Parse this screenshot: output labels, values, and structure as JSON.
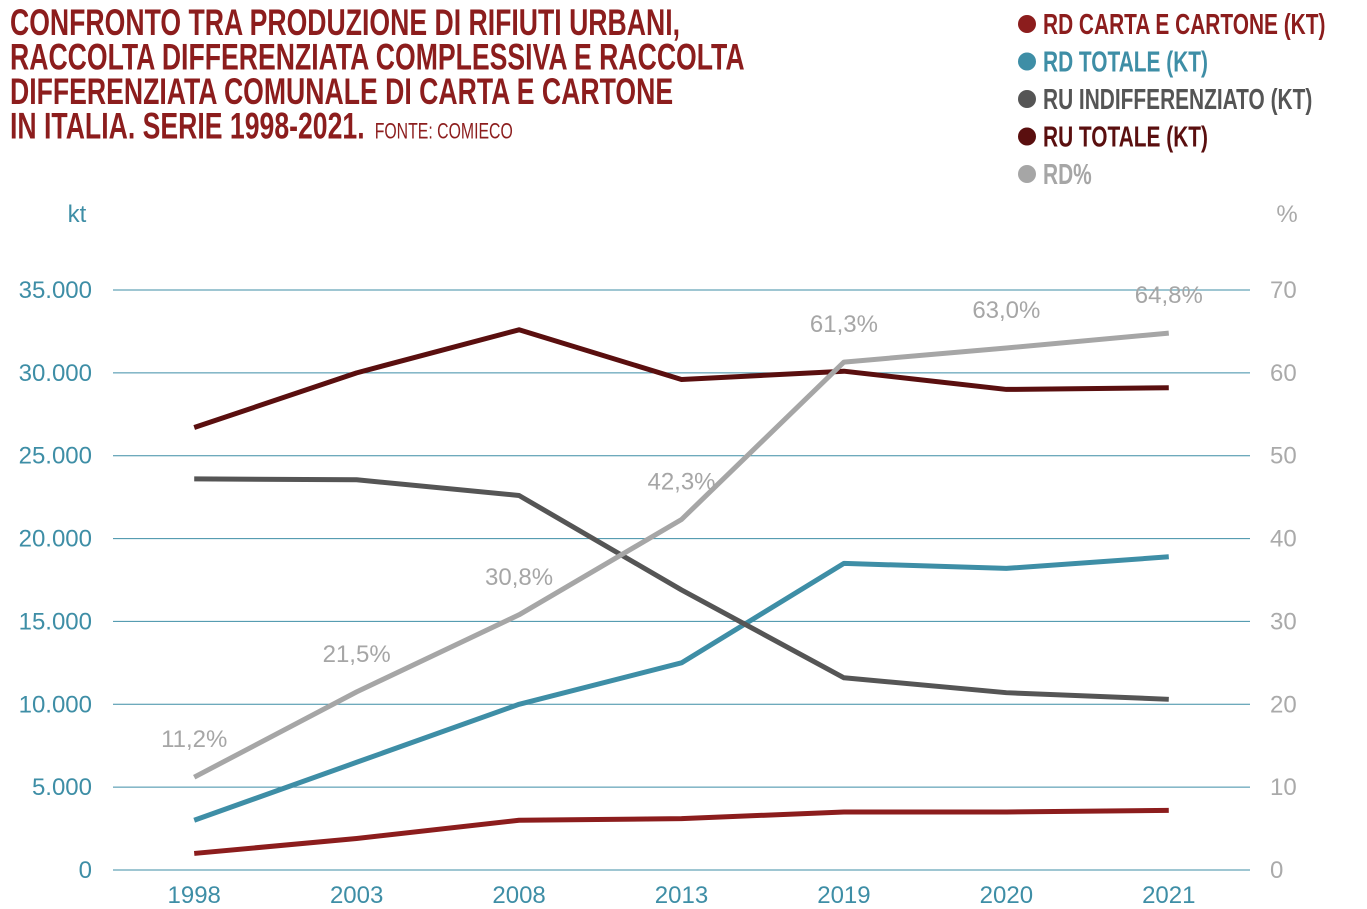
{
  "chart_data": {
    "type": "line",
    "title": [
      "CONFRONTO TRA PRODUZIONE DI RIFIUTI URBANI,",
      "RACCOLTA DIFFERENZIATA COMPLESSIVA E RACCOLTA",
      "DIFFERENZIATA COMUNALE DI CARTA E CARTONE",
      "IN ITALIA. SERIE 1998-2021."
    ],
    "source": "FONTE: COMIECO",
    "y_label": "kt",
    "y2_label": "%",
    "categories": [
      "1998",
      "2003",
      "2008",
      "2013",
      "2019",
      "2020",
      "2021"
    ],
    "series": [
      {
        "name": "RD CARTA E CARTONE (KT)",
        "color": "#8c1d1d",
        "values": [
          1000,
          1900,
          3000,
          3100,
          3500,
          3500,
          3600
        ]
      },
      {
        "name": "RD TOTALE (KT)",
        "color": "#3e8ea6",
        "values": [
          3000,
          6500,
          10000,
          12500,
          18500,
          18200,
          18900
        ]
      },
      {
        "name": "RU INDIFFERENZIATO (KT)",
        "color": "#555555",
        "values": [
          23600,
          23550,
          22600,
          16900,
          11600,
          10700,
          10300
        ]
      },
      {
        "name": "RU TOTALE (KT)",
        "color": "#5a0f0f",
        "values": [
          26700,
          30000,
          32600,
          29600,
          30100,
          29000,
          29100
        ]
      },
      {
        "name": "RD%",
        "color": "#a6a6a6",
        "axis": "y2",
        "values": [
          11.2,
          21.5,
          30.8,
          42.3,
          61.3,
          63.0,
          64.8
        ],
        "value_labels": [
          "11,2%",
          "21,5%",
          "30,8%",
          "42,3%",
          "61,3%",
          "63,0%",
          "64,8%"
        ]
      }
    ],
    "ylim": [
      0,
      35000
    ],
    "yticks": [
      0,
      {
        "value": 5000,
        "label": "5.000"
      },
      {
        "value": 10000,
        "label": "10.000"
      },
      {
        "value": 15000,
        "label": "15.000"
      },
      {
        "value": 20000,
        "label": "20.000"
      },
      {
        "value": 25000,
        "label": "25.000"
      },
      {
        "value": 30000,
        "label": "30.000"
      },
      {
        "value": 35000,
        "label": "35.000"
      }
    ],
    "y2lim": [
      0,
      70
    ],
    "y2ticks": [
      0,
      10,
      20,
      30,
      40,
      50,
      60,
      70
    ],
    "grid": true,
    "grid_color": "#3e8ea6",
    "legend": "top-right"
  }
}
